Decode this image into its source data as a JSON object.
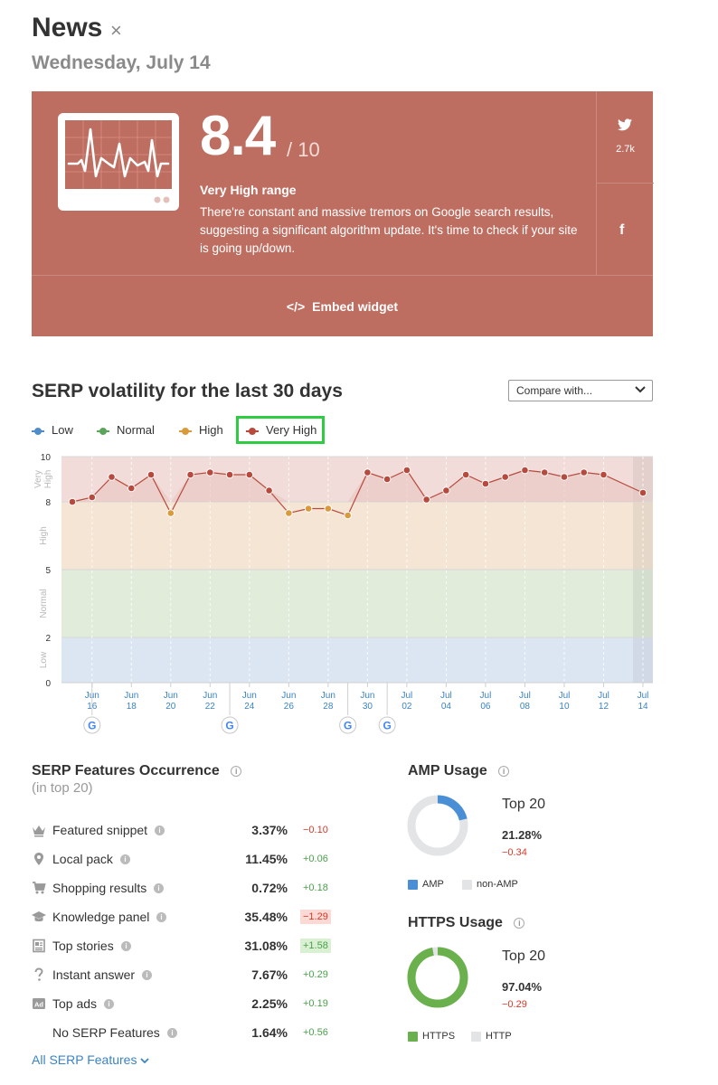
{
  "header": {
    "title": "News",
    "close_glyph": "×",
    "date": "Wednesday, July 14"
  },
  "score_card": {
    "bg_color": "#bd6e61",
    "score": "8.4",
    "max": "/ 10",
    "range_label": "Very High range",
    "description": "There're constant and massive tremors on Google search results, suggesting a significant algorithm update. It's time to check if your site is going up/down.",
    "twitter_icon": "twitter-icon",
    "twitter_count": "2.7k",
    "facebook_icon": "facebook-icon",
    "facebook_glyph": "f",
    "embed_glyph": "</>",
    "embed_label": "Embed widget"
  },
  "volatility": {
    "title": "SERP volatility for the last 30 days",
    "compare_label": "Compare with...",
    "legend": [
      {
        "label": "Low",
        "color": "#4f8cc9"
      },
      {
        "label": "Normal",
        "color": "#5aa55a"
      },
      {
        "label": "High",
        "color": "#d99a3d"
      },
      {
        "label": "Very High",
        "color": "#b84a3d"
      }
    ]
  },
  "chart_data": {
    "type": "line",
    "y_ticks": [
      0,
      2,
      5,
      8,
      10
    ],
    "ylim": [
      0,
      10
    ],
    "bands": [
      {
        "label": "Low",
        "from": 0,
        "to": 2,
        "color": "#dce6f3"
      },
      {
        "label": "Normal",
        "from": 2,
        "to": 5,
        "color": "#e1ecdb"
      },
      {
        "label": "High",
        "from": 5,
        "to": 8,
        "color": "#f5e5d4"
      },
      {
        "label": "Very High",
        "from": 8,
        "to": 10,
        "color": "#f1dcd9"
      }
    ],
    "x": [
      "Jun 15",
      "Jun 16",
      "Jun 17",
      "Jun 18",
      "Jun 19",
      "Jun 20",
      "Jun 21",
      "Jun 22",
      "Jun 23",
      "Jun 24",
      "Jun 25",
      "Jun 26",
      "Jun 27",
      "Jun 28",
      "Jun 29",
      "Jun 30",
      "Jul 01",
      "Jul 02",
      "Jul 03",
      "Jul 04",
      "Jul 05",
      "Jul 06",
      "Jul 07",
      "Jul 08",
      "Jul 09",
      "Jul 10",
      "Jul 11",
      "Jul 12",
      "Jul 13",
      "Jul 14"
    ],
    "values": [
      8.0,
      8.2,
      9.1,
      8.6,
      9.2,
      7.5,
      9.2,
      9.3,
      9.2,
      9.2,
      8.5,
      7.5,
      7.7,
      7.7,
      7.4,
      9.3,
      9.0,
      9.4,
      8.1,
      8.5,
      9.2,
      8.8,
      9.1,
      9.4,
      9.3,
      9.1,
      9.3,
      9.2,
      null,
      8.4
    ],
    "x_tick_labels": [
      {
        "m": "Jun",
        "d": "16",
        "i": 1
      },
      {
        "m": "Jun",
        "d": "18",
        "i": 3
      },
      {
        "m": "Jun",
        "d": "20",
        "i": 5
      },
      {
        "m": "Jun",
        "d": "22",
        "i": 7
      },
      {
        "m": "Jun",
        "d": "24",
        "i": 9
      },
      {
        "m": "Jun",
        "d": "26",
        "i": 11
      },
      {
        "m": "Jun",
        "d": "28",
        "i": 13
      },
      {
        "m": "Jun",
        "d": "30",
        "i": 15
      },
      {
        "m": "Jul",
        "d": "02",
        "i": 17
      },
      {
        "m": "Jul",
        "d": "04",
        "i": 19
      },
      {
        "m": "Jul",
        "d": "06",
        "i": 21
      },
      {
        "m": "Jul",
        "d": "08",
        "i": 23
      },
      {
        "m": "Jul",
        "d": "10",
        "i": 25
      },
      {
        "m": "Jul",
        "d": "12",
        "i": 27
      },
      {
        "m": "Jul",
        "d": "14",
        "i": 29
      }
    ],
    "google_updates": [
      "Jun 16",
      "Jun 23",
      "Jun 29",
      "Jul 01"
    ],
    "google_glyph": "G"
  },
  "features": {
    "title": "SERP Features Occurrence",
    "subtitle": "(in top 20)",
    "info_glyph": "i",
    "items": [
      {
        "icon": "crown-icon",
        "name": "Featured snippet",
        "value": "3.37%",
        "delta": "−0.10",
        "trend": "neg",
        "highlight": false
      },
      {
        "icon": "map-pin-icon",
        "name": "Local pack",
        "value": "11.45%",
        "delta": "+0.06",
        "trend": "pos",
        "highlight": false
      },
      {
        "icon": "shopping-cart-icon",
        "name": "Shopping results",
        "value": "0.72%",
        "delta": "+0.18",
        "trend": "pos",
        "highlight": false
      },
      {
        "icon": "graduation-cap-icon",
        "name": "Knowledge panel",
        "value": "35.48%",
        "delta": "−1.29",
        "trend": "neg",
        "highlight": true
      },
      {
        "icon": "newspaper-icon",
        "name": "Top stories",
        "value": "31.08%",
        "delta": "+1.58",
        "trend": "pos",
        "highlight": true
      },
      {
        "icon": "question-mark-icon",
        "name": "Instant answer",
        "value": "7.67%",
        "delta": "+0.29",
        "trend": "pos",
        "highlight": false
      },
      {
        "icon": "ad-badge-icon",
        "name": "Top ads",
        "value": "2.25%",
        "delta": "+0.19",
        "trend": "pos",
        "highlight": false
      },
      {
        "icon": "",
        "name": "No SERP Features",
        "value": "1.64%",
        "delta": "+0.56",
        "trend": "pos",
        "highlight": false
      }
    ],
    "all_link": "All SERP Features",
    "all_chevron": "⌄"
  },
  "amp": {
    "title": "AMP Usage",
    "top_label": "Top 20",
    "percent": "21.28%",
    "fraction": 0.2128,
    "delta": "−0.34",
    "color": "#4a8fd6",
    "rest_color": "#e3e4e6",
    "legend_a": "AMP",
    "legend_b": "non-AMP"
  },
  "https": {
    "title": "HTTPS Usage",
    "top_label": "Top 20",
    "percent": "97.04%",
    "fraction": 0.9704,
    "delta": "−0.29",
    "color": "#6ab04c",
    "rest_color": "#e3e4e6",
    "legend_a": "HTTPS",
    "legend_b": "HTTP"
  }
}
